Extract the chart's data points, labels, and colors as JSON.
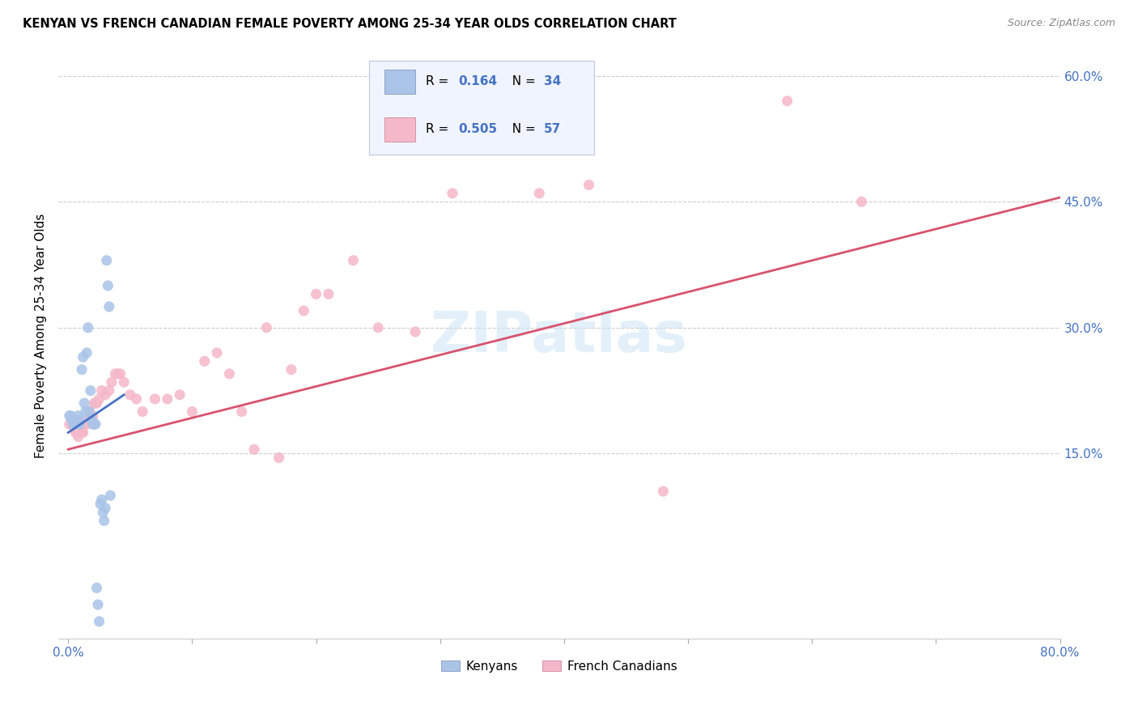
{
  "title": "KENYAN VS FRENCH CANADIAN FEMALE POVERTY AMONG 25-34 YEAR OLDS CORRELATION CHART",
  "source": "Source: ZipAtlas.com",
  "ylabel": "Female Poverty Among 25-34 Year Olds",
  "xlim": [
    -0.008,
    0.8
  ],
  "ylim": [
    -0.07,
    0.65
  ],
  "xtick_positions": [
    0.0,
    0.1,
    0.2,
    0.3,
    0.4,
    0.5,
    0.6,
    0.7,
    0.8
  ],
  "xticklabels": [
    "0.0%",
    "",
    "",
    "",
    "",
    "",
    "",
    "",
    "80.0%"
  ],
  "ytick_right_pos": [
    0.15,
    0.3,
    0.45,
    0.6
  ],
  "ytick_right_labels": [
    "15.0%",
    "30.0%",
    "45.0%",
    "60.0%"
  ],
  "watermark": "ZIPatlas",
  "kenyan_label": "Kenyans",
  "fc_label": "French Canadians",
  "kenyan_color": "#aac4e8",
  "fc_color": "#f5b8c8",
  "kenyan_line_color": "#4472c4",
  "fc_line_color": "#d9536f",
  "legend_R_color": "#4472c4",
  "legend_N_color": "#d9536f",
  "R1": "0.164",
  "N1": "34",
  "R2": "0.505",
  "N2": "57",
  "kenyan_x": [
    0.001,
    0.002,
    0.003,
    0.004,
    0.005,
    0.006,
    0.007,
    0.008,
    0.009,
    0.01,
    0.011,
    0.012,
    0.013,
    0.014,
    0.015,
    0.016,
    0.017,
    0.018,
    0.019,
    0.02,
    0.021,
    0.022,
    0.023,
    0.024,
    0.025,
    0.026,
    0.027,
    0.028,
    0.029,
    0.03,
    0.031,
    0.032,
    0.033,
    0.034
  ],
  "kenyan_y": [
    0.195,
    0.195,
    0.19,
    0.185,
    0.19,
    0.19,
    0.185,
    0.195,
    0.185,
    0.19,
    0.25,
    0.265,
    0.21,
    0.2,
    0.27,
    0.3,
    0.2,
    0.225,
    0.19,
    0.185,
    0.185,
    0.185,
    -0.01,
    -0.03,
    -0.05,
    0.09,
    0.095,
    0.08,
    0.07,
    0.085,
    0.38,
    0.35,
    0.325,
    0.1
  ],
  "fc_x": [
    0.001,
    0.003,
    0.005,
    0.006,
    0.007,
    0.008,
    0.009,
    0.01,
    0.011,
    0.012,
    0.013,
    0.014,
    0.015,
    0.016,
    0.017,
    0.018,
    0.019,
    0.02,
    0.021,
    0.022,
    0.023,
    0.025,
    0.027,
    0.03,
    0.033,
    0.035,
    0.038,
    0.04,
    0.042,
    0.045,
    0.05,
    0.055,
    0.06,
    0.07,
    0.08,
    0.09,
    0.1,
    0.11,
    0.12,
    0.13,
    0.14,
    0.15,
    0.16,
    0.17,
    0.18,
    0.19,
    0.2,
    0.21,
    0.23,
    0.25,
    0.28,
    0.31,
    0.38,
    0.42,
    0.48,
    0.58,
    0.64
  ],
  "fc_y": [
    0.185,
    0.185,
    0.18,
    0.175,
    0.175,
    0.17,
    0.175,
    0.175,
    0.175,
    0.175,
    0.185,
    0.185,
    0.185,
    0.19,
    0.2,
    0.195,
    0.19,
    0.195,
    0.21,
    0.21,
    0.21,
    0.215,
    0.225,
    0.22,
    0.225,
    0.235,
    0.245,
    0.245,
    0.245,
    0.235,
    0.22,
    0.215,
    0.2,
    0.215,
    0.215,
    0.22,
    0.2,
    0.26,
    0.27,
    0.245,
    0.2,
    0.155,
    0.3,
    0.145,
    0.25,
    0.32,
    0.34,
    0.34,
    0.38,
    0.3,
    0.295,
    0.46,
    0.46,
    0.47,
    0.105,
    0.57,
    0.45
  ],
  "kenyan_line_x": [
    0.0,
    0.045
  ],
  "kenyan_line_y": [
    0.175,
    0.22
  ],
  "fc_line_x": [
    0.0,
    0.8
  ],
  "fc_line_y": [
    0.155,
    0.455
  ]
}
